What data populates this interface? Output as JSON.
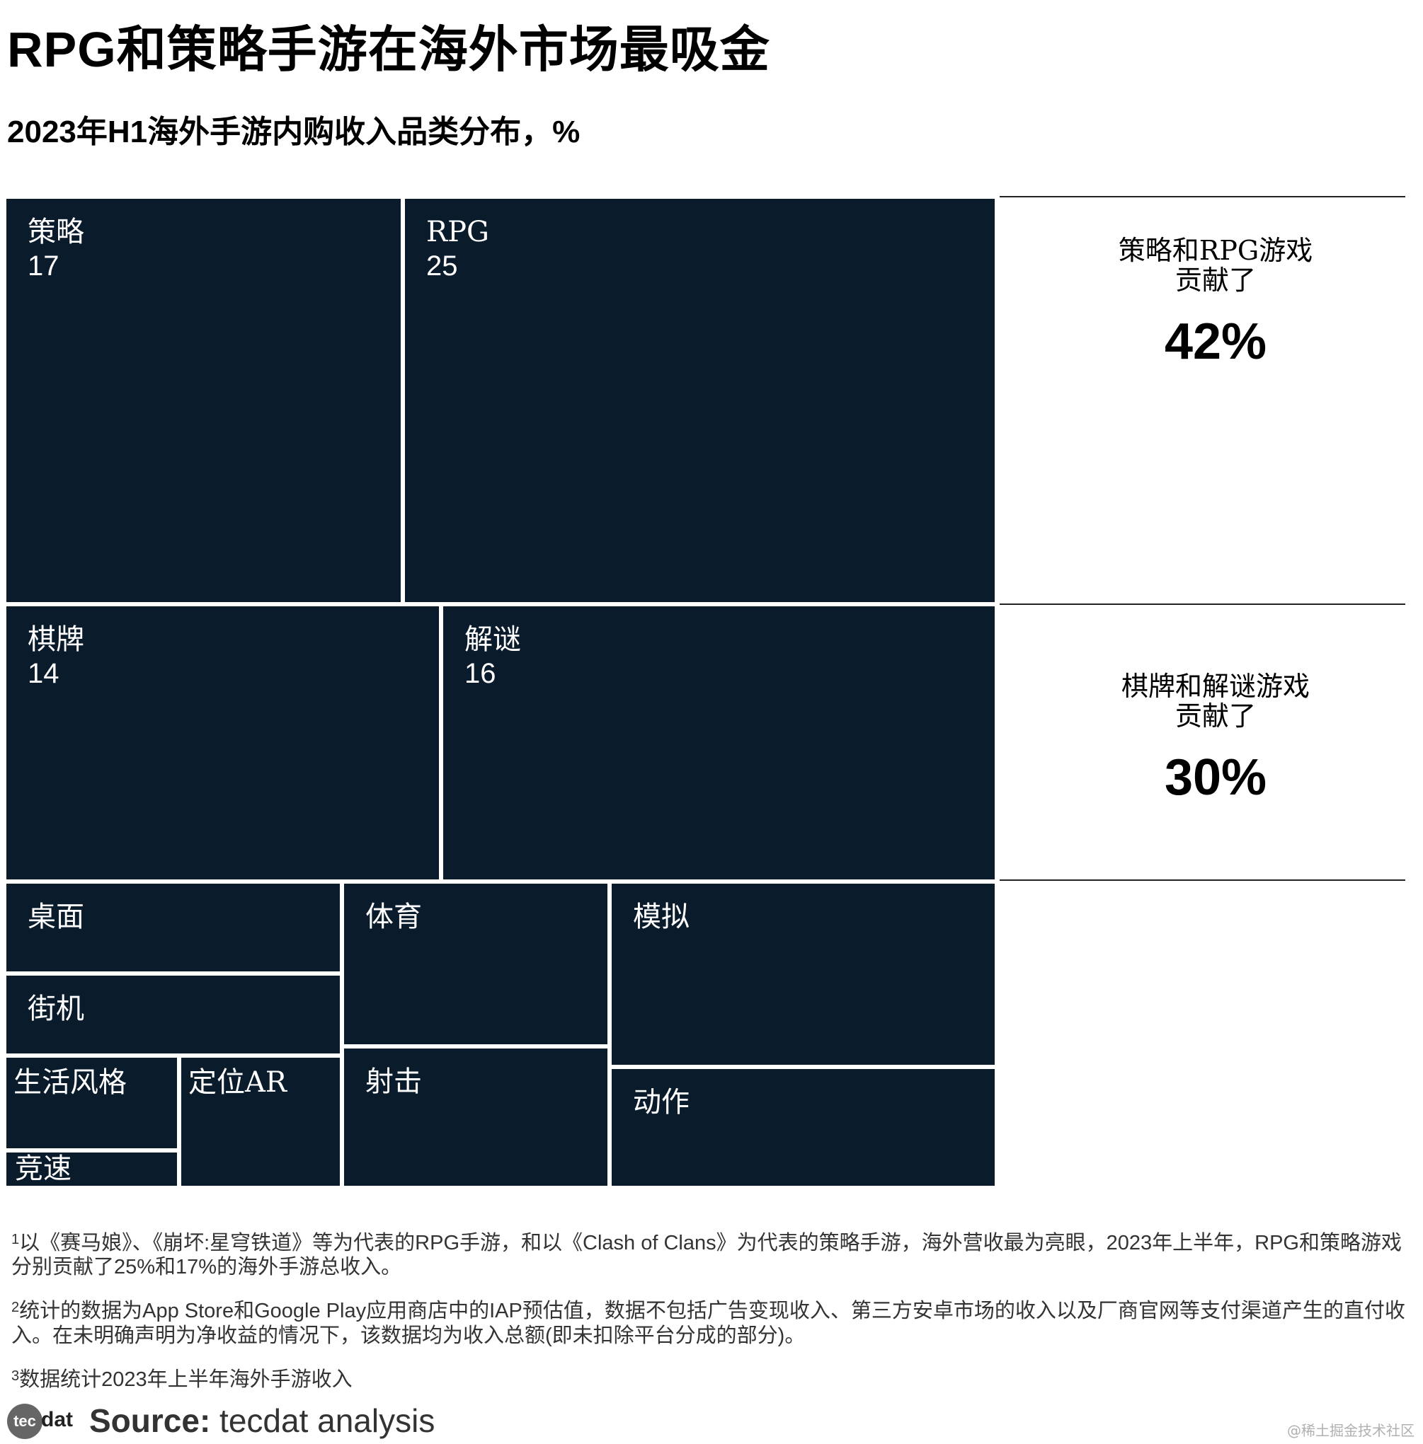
{
  "title": "RPG和策略手游在海外市场最吸金",
  "subtitle": "2023年H1海外手游内购收入品类分布，%",
  "chart_data": {
    "type": "treemap",
    "title": "RPG和策略手游在海外市场最吸金",
    "subtitle": "2023年H1海外手游内购收入品类分布，%",
    "unit": "%",
    "colors": {
      "tile": "#0a1b2c",
      "border": "#ffffff"
    },
    "items": [
      {
        "name": "策略",
        "value": 17
      },
      {
        "name": "RPG",
        "value": 25
      },
      {
        "name": "棋牌",
        "value": 14
      },
      {
        "name": "解谜",
        "value": 16
      },
      {
        "name": "桌面",
        "value": null
      },
      {
        "name": "街机",
        "value": null
      },
      {
        "name": "生活风格",
        "value": null
      },
      {
        "name": "竞速",
        "value": null
      },
      {
        "name": "定位AR",
        "value": null
      },
      {
        "name": "体育",
        "value": null
      },
      {
        "name": "射击",
        "value": null
      },
      {
        "name": "模拟",
        "value": null
      },
      {
        "name": "动作",
        "value": null
      }
    ]
  },
  "callouts": [
    {
      "line1": "策略和RPG游戏",
      "line2": "贡献了",
      "value": "42%"
    },
    {
      "line1": "棋牌和解谜游戏",
      "line2": "贡献了",
      "value": "30%"
    }
  ],
  "footnotes": [
    {
      "mark": "1",
      "text": "以《赛马娘》、《崩坏:星穹铁道》等为代表的RPG手游，和以《Clash of Clans》为代表的策略手游，海外营收最为亮眼，2023年上半年，RPG和策略游戏分别贡献了25%和17%的海外手游总收入。"
    },
    {
      "mark": "2",
      "text": "统计的数据为App Store和Google Play应用商店中的IAP预估值，数据不包括广告变现收入、第三方安卓市场的收入以及厂商官网等支付渠道产生的直付收入。在未明确声明为净收益的情况下，该数据均为收入总额(即未扣除平台分成的部分)。"
    },
    {
      "mark": "3",
      "text": "数据统计2023年上半年海外手游收入"
    }
  ],
  "source": {
    "label": "Source:",
    "text": " tecdat analysis"
  },
  "logo": {
    "circle": "tec",
    "rest": "dat"
  },
  "watermark": "@稀土掘金技术社区"
}
